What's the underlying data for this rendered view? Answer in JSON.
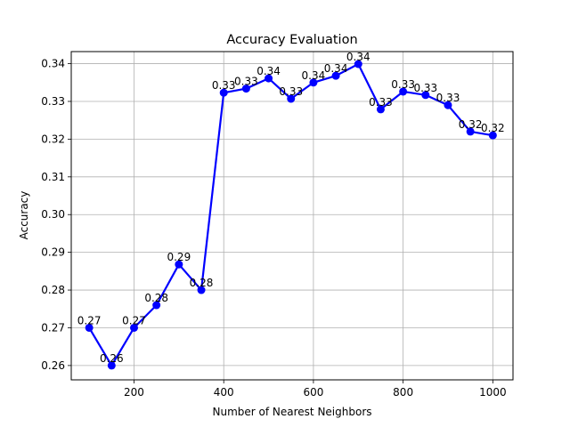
{
  "chart_data": {
    "type": "line",
    "title": "Accuracy Evaluation",
    "xlabel": "Number of Nearest Neighbors",
    "ylabel": "Accuracy",
    "xlim": [
      60,
      1045
    ],
    "ylim": [
      0.2562,
      0.3432
    ],
    "x_ticks": [
      200,
      400,
      600,
      800,
      1000
    ],
    "y_ticks": [
      0.26,
      0.27,
      0.28,
      0.29,
      0.3,
      0.31,
      0.32,
      0.33,
      0.34
    ],
    "y_tick_labels": [
      "0.26",
      "0.27",
      "0.28",
      "0.29",
      "0.30",
      "0.31",
      "0.32",
      "0.33",
      "0.34"
    ],
    "grid": true,
    "series": [
      {
        "color": "#0000ff",
        "marker": "circle",
        "x": [
          100,
          150,
          200,
          250,
          300,
          350,
          400,
          450,
          500,
          550,
          600,
          650,
          700,
          750,
          800,
          850,
          900,
          950,
          1000
        ],
        "values": [
          0.27,
          0.26,
          0.27,
          0.276,
          0.2868,
          0.28,
          0.3323,
          0.3334,
          0.3361,
          0.3307,
          0.335,
          0.3368,
          0.3399,
          0.3279,
          0.3326,
          0.3317,
          0.329,
          0.322,
          0.321
        ],
        "labels": [
          "0.27",
          "0.26",
          "0.27",
          "0.28",
          "0.29",
          "0.28",
          "0.33",
          "0.33",
          "0.34",
          "0.33",
          "0.34",
          "0.34",
          "0.34",
          "0.33",
          "0.33",
          "0.33",
          "0.33",
          "0.32",
          "0.32"
        ]
      }
    ]
  }
}
